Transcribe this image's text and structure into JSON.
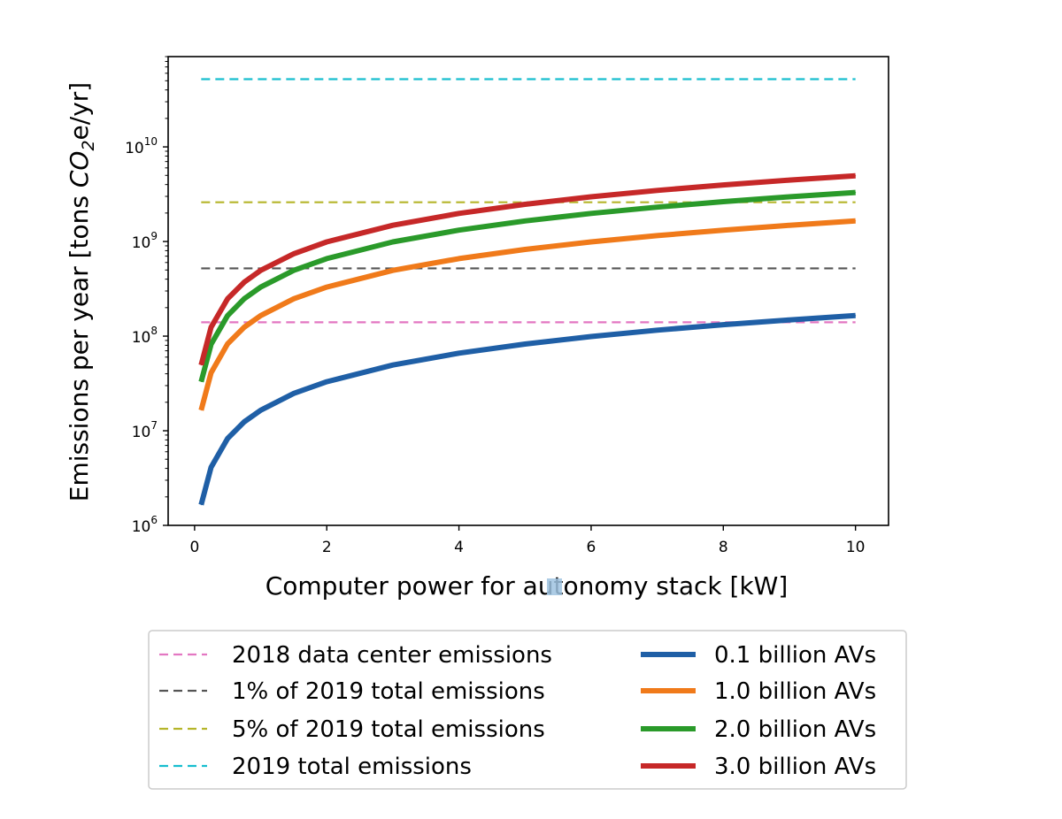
{
  "chart_data": {
    "type": "line",
    "xlabel": "Computer power for autonomy stack [kW]",
    "ylabel": "Emissions per year [tons CO2e/yr]",
    "ylabel_parts": {
      "pre": "Emissions per year [tons ",
      "co": "CO",
      "sub": "2",
      "post": "e/yr]"
    },
    "xlim": [
      -0.4,
      10.5
    ],
    "ylim": [
      1000000,
      90000000000
    ],
    "yscale": "log",
    "grid": false,
    "legend_position": "below plot",
    "x_ticks": [
      0,
      2,
      4,
      6,
      8,
      10
    ],
    "y_ticks": [
      {
        "value": 1000000,
        "base": "10",
        "exp": "6"
      },
      {
        "value": 10000000,
        "base": "10",
        "exp": "7"
      },
      {
        "value": 100000000,
        "base": "10",
        "exp": "8"
      },
      {
        "value": 1000000000,
        "base": "10",
        "exp": "9"
      },
      {
        "value": 10000000000,
        "base": "10",
        "exp": "10"
      }
    ],
    "x": [
      0.1,
      0.25,
      0.5,
      0.75,
      1,
      1.5,
      2,
      3,
      4,
      5,
      6,
      7,
      8,
      9,
      10
    ],
    "series": [
      {
        "name": "0.1 billion AVs",
        "color": "#1f5fa6",
        "style": "solid",
        "values": [
          1650000,
          4100000,
          8300000,
          12400000,
          16500000,
          24800000,
          33000000,
          49500000,
          66000000,
          82500000,
          99000000,
          115500000,
          132000000,
          148500000,
          165000000
        ]
      },
      {
        "name": "1.0 billion AVs",
        "color": "#f07a1a",
        "style": "solid",
        "values": [
          16500000,
          41000000,
          83000000,
          124000000,
          165000000,
          248000000,
          330000000,
          495000000,
          660000000,
          825000000,
          990000000,
          1155000000,
          1320000000,
          1485000000,
          1650000000
        ]
      },
      {
        "name": "2.0 billion AVs",
        "color": "#2a9a2a",
        "style": "solid",
        "values": [
          33000000,
          82000000,
          165000000,
          248000000,
          330000000,
          495000000,
          660000000,
          990000000,
          1320000000,
          1650000000,
          1980000000,
          2310000000,
          2640000000,
          2970000000,
          3300000000
        ]
      },
      {
        "name": "3.0 billion AVs",
        "color": "#c62828",
        "style": "solid",
        "values": [
          49500000,
          124000000,
          248000000,
          371000000,
          495000000,
          743000000,
          990000000,
          1485000000,
          1980000000,
          2475000000,
          2970000000,
          3465000000,
          3960000000,
          4455000000,
          4950000000
        ]
      }
    ],
    "reference_lines": [
      {
        "name": "2018 data center emissions",
        "color": "#e377c2",
        "value": 140000000
      },
      {
        "name": "1% of 2019 total emissions",
        "color": "#555555",
        "value": 520000000
      },
      {
        "name": "5% of 2019 total emissions",
        "color": "#b5b52a",
        "value": 2600000000
      },
      {
        "name": "2019 total emissions",
        "color": "#17becf",
        "value": 52000000000
      }
    ],
    "x_range_lines": [
      0.1,
      10
    ]
  }
}
